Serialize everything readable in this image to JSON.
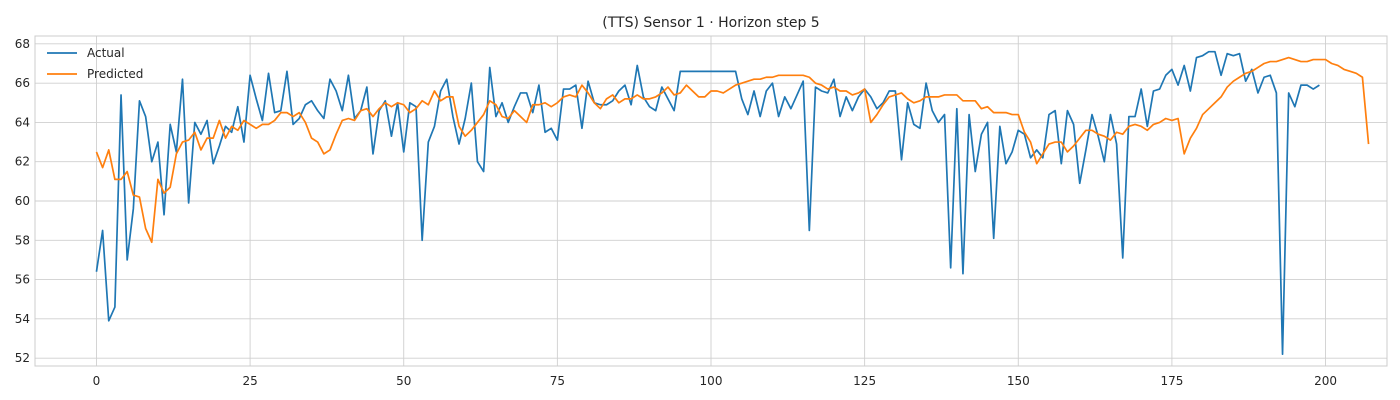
{
  "chart_data": {
    "type": "line",
    "title": "(TTS) Sensor 1 · Horizon step 5",
    "xlabel": "",
    "ylabel": "",
    "xlim": [
      -10,
      210
    ],
    "ylim": [
      51.6,
      68.4
    ],
    "xticks": [
      0,
      25,
      50,
      75,
      100,
      125,
      150,
      175,
      200
    ],
    "yticks": [
      52,
      54,
      56,
      58,
      60,
      62,
      64,
      66,
      68
    ],
    "grid": true,
    "legend": "top-left",
    "series": [
      {
        "name": "Actual",
        "color": "#1f77b4",
        "values": [
          56.4,
          58.5,
          53.9,
          54.6,
          65.4,
          57.0,
          59.6,
          65.1,
          64.3,
          62.0,
          63.0,
          59.3,
          63.9,
          62.5,
          66.2,
          59.9,
          64.0,
          63.4,
          64.1,
          61.9,
          62.8,
          63.8,
          63.5,
          64.8,
          63.0,
          66.4,
          65.2,
          64.1,
          66.5,
          64.5,
          64.6,
          66.6,
          63.9,
          64.2,
          64.9,
          65.1,
          64.6,
          64.2,
          66.2,
          65.6,
          64.6,
          66.4,
          64.2,
          64.6,
          65.8,
          62.4,
          64.6,
          65.1,
          63.3,
          65.0,
          62.5,
          65.0,
          64.8,
          58.0,
          63.0,
          63.8,
          65.6,
          66.2,
          64.3,
          62.9,
          64.2,
          66.0,
          62.0,
          61.5,
          66.8,
          64.3,
          65.0,
          64.0,
          64.8,
          65.5,
          65.5,
          64.5,
          65.9,
          63.5,
          63.7,
          63.1,
          65.7,
          65.7,
          65.9,
          63.7,
          66.1,
          65.0,
          64.9,
          64.9,
          65.1,
          65.6,
          65.9,
          64.9,
          66.9,
          65.3,
          64.8,
          64.6,
          65.8,
          65.2,
          64.6,
          66.6,
          66.6,
          66.6,
          66.6,
          66.6,
          66.6,
          66.6,
          66.6,
          66.6,
          66.6,
          65.2,
          64.4,
          65.6,
          64.3,
          65.6,
          66.0,
          64.3,
          65.3,
          64.7,
          65.4,
          66.1,
          58.5,
          65.8,
          65.6,
          65.5,
          66.2,
          64.3,
          65.3,
          64.6,
          65.3,
          65.7,
          65.3,
          64.7,
          65.0,
          65.6,
          65.6,
          62.1,
          65.0,
          63.9,
          63.7,
          66.0,
          64.6,
          64.0,
          64.4,
          56.6,
          64.7,
          56.3,
          64.4,
          61.5,
          63.4,
          64.0,
          58.1,
          63.8,
          61.9,
          62.5,
          63.6,
          63.4,
          62.2,
          62.6,
          62.2,
          64.4,
          64.6,
          61.9,
          64.6,
          63.9,
          60.9,
          62.6,
          64.4,
          63.3,
          62.0,
          64.4,
          62.9,
          57.1,
          64.3,
          64.3,
          65.7,
          63.8,
          65.6,
          65.7,
          66.4,
          66.7,
          65.9,
          66.9,
          65.6,
          67.3,
          67.4,
          67.6,
          67.6,
          66.4,
          67.5,
          67.4,
          67.5,
          66.1,
          66.7,
          65.5,
          66.3,
          66.4,
          65.5,
          52.2,
          65.5,
          64.8,
          65.9,
          65.9,
          65.7,
          65.9
        ]
      },
      {
        "name": "Predicted",
        "color": "#ff7f0e",
        "values": [
          62.5,
          61.7,
          62.6,
          61.1,
          61.1,
          61.5,
          60.3,
          60.2,
          58.6,
          57.9,
          61.1,
          60.4,
          60.7,
          62.4,
          63.0,
          63.1,
          63.5,
          62.6,
          63.2,
          63.2,
          64.1,
          63.2,
          63.8,
          63.6,
          64.1,
          63.9,
          63.7,
          63.9,
          63.9,
          64.1,
          64.5,
          64.5,
          64.3,
          64.5,
          64.0,
          63.2,
          63.0,
          62.4,
          62.6,
          63.4,
          64.1,
          64.2,
          64.1,
          64.6,
          64.7,
          64.3,
          64.7,
          65.0,
          64.8,
          65.0,
          64.9,
          64.5,
          64.7,
          65.1,
          64.9,
          65.6,
          65.1,
          65.3,
          65.3,
          63.8,
          63.3,
          63.6,
          64.0,
          64.4,
          65.1,
          64.9,
          64.3,
          64.2,
          64.6,
          64.3,
          64.0,
          64.9,
          64.9,
          65.0,
          64.8,
          65.0,
          65.3,
          65.4,
          65.3,
          65.9,
          65.5,
          65.0,
          64.7,
          65.2,
          65.4,
          65.0,
          65.2,
          65.2,
          65.4,
          65.2,
          65.2,
          65.3,
          65.5,
          65.8,
          65.4,
          65.5,
          65.9,
          65.6,
          65.3,
          65.3,
          65.6,
          65.6,
          65.5,
          65.7,
          65.9,
          66.0,
          66.1,
          66.2,
          66.2,
          66.3,
          66.3,
          66.4,
          66.4,
          66.4,
          66.4,
          66.4,
          66.3,
          66.0,
          65.9,
          65.7,
          65.8,
          65.6,
          65.6,
          65.4,
          65.5,
          65.7,
          64.0,
          64.4,
          64.9,
          65.3,
          65.4,
          65.5,
          65.2,
          65.0,
          65.1,
          65.3,
          65.3,
          65.3,
          65.4,
          65.4,
          65.4,
          65.1,
          65.1,
          65.1,
          64.7,
          64.8,
          64.5,
          64.5,
          64.5,
          64.4,
          64.4,
          63.5,
          63.0,
          61.9,
          62.4,
          62.9,
          63.0,
          63.0,
          62.5,
          62.8,
          63.2,
          63.6,
          63.6,
          63.4,
          63.3,
          63.1,
          63.5,
          63.4,
          63.8,
          63.9,
          63.8,
          63.6,
          63.9,
          64.0,
          64.2,
          64.1,
          64.2,
          62.4,
          63.2,
          63.7,
          64.4,
          64.7,
          65.0,
          65.3,
          65.8,
          66.1,
          66.3,
          66.5,
          66.6,
          66.8,
          67.0,
          67.1,
          67.1,
          67.2,
          67.3,
          67.2,
          67.1,
          67.1,
          67.2,
          67.2,
          67.2,
          67.0,
          66.9,
          66.7,
          66.6,
          66.5,
          66.3,
          62.9
        ]
      }
    ]
  }
}
